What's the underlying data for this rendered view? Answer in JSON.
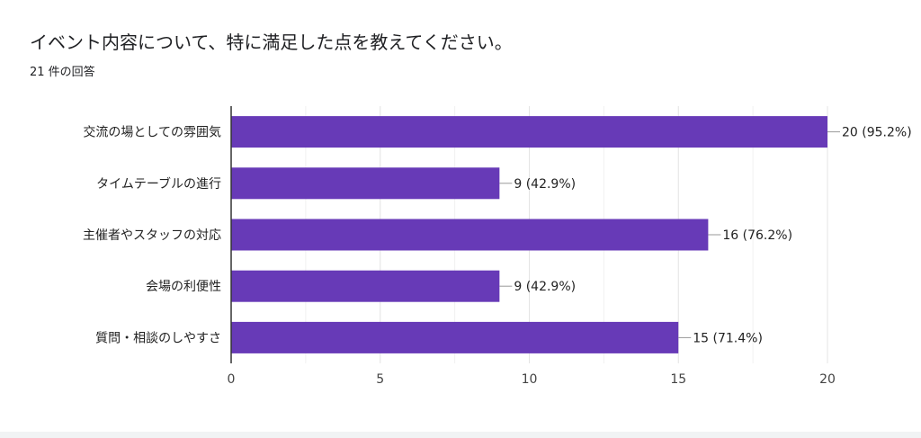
{
  "question": {
    "title": "イベント内容について、特に満足した点を教えてください。",
    "response_count": "21 件の回答"
  },
  "colors": {
    "bar": "#673ab7",
    "grid": "#e0e0e0",
    "axis": "#333333"
  },
  "chart_data": {
    "type": "bar",
    "orientation": "horizontal",
    "categories": [
      "交流の場としての雰囲気",
      "タイムテーブルの進行",
      "主催者やスタッフの対応",
      "会場の利便性",
      "質問・相談のしやすさ"
    ],
    "values": [
      20,
      9,
      16,
      9,
      15
    ],
    "data_labels": [
      "20 (95.2%)",
      "9 (42.9%)",
      "16 (76.2%)",
      "9 (42.9%)",
      "15 (71.4%)"
    ],
    "xlim": [
      0,
      20
    ],
    "xticks": [
      0,
      5,
      10,
      15,
      20
    ],
    "grid": true
  }
}
